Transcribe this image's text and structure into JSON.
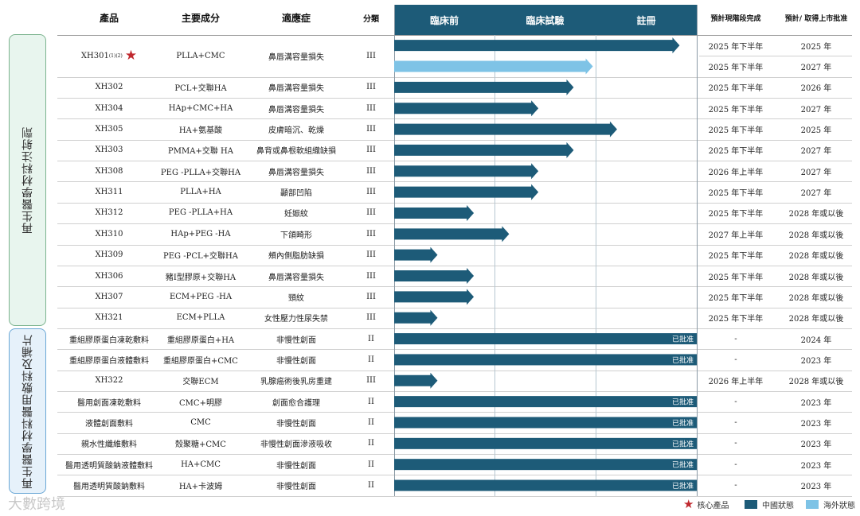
{
  "header": {
    "product": "產品",
    "ingredient": "主要成分",
    "indication": "適應症",
    "class": "分類",
    "phases": [
      "臨床前",
      "臨床試驗",
      "註冊"
    ],
    "expected_completion": "預計現階段完成",
    "expected_approval": "預計/ 取得上市批准"
  },
  "sidebar": {
    "group1": "再生醫學材料注射劑",
    "group2": "再生醫學材料醫用敷料及補片"
  },
  "colors": {
    "china": "#1d5b78",
    "overseas": "#7ec3e6",
    "star": "#c0282e",
    "group1_bg": "#e8f5ee",
    "group1_border": "#7bb38e",
    "group2_bg": "#e6f1fa",
    "group2_border": "#6aa7d6"
  },
  "chart_data": {
    "type": "bar",
    "x_axis": "stage progress (0 = start of 臨床前, 1 = start of 臨床試驗, 2 = start of 註冊, 3 = end of 註冊)",
    "approved_label": "已批准",
    "rows": [
      {
        "product": "XH301",
        "sup": "(1)(2)",
        "star": true,
        "ingredient": "PLLA+CMC",
        "indication": "鼻唇溝容量損失",
        "class": "III",
        "china": 2.83,
        "overseas": 1.97,
        "completion_china": "2025 年下半年",
        "approval_china": "2025 年",
        "completion_overseas": "2025 年下半年",
        "approval_overseas": "2027 年"
      },
      {
        "product": "XH302",
        "ingredient": "PCL+交聯HA",
        "indication": "鼻唇溝容量損失",
        "class": "III",
        "china": 1.78,
        "completion": "2025 年下半年",
        "approval": "2026 年"
      },
      {
        "product": "XH304",
        "ingredient": "HAp+CMC+HA",
        "indication": "鼻唇溝容量損失",
        "class": "III",
        "china": 1.43,
        "completion": "2025 年下半年",
        "approval": "2027 年"
      },
      {
        "product": "XH305",
        "ingredient": "HA+氨基酸",
        "indication": "皮膚暗沉、乾燥",
        "class": "III",
        "china": 2.21,
        "completion": "2025 年下半年",
        "approval": "2025 年"
      },
      {
        "product": "XH303",
        "ingredient": "PMMA+交聯 HA",
        "indication": "鼻背或鼻根軟組織缺損",
        "class": "III",
        "china": 1.78,
        "completion": "2025 年下半年",
        "approval": "2027 年"
      },
      {
        "product": "XH308",
        "ingredient": "PEG -PLLA+交聯HA",
        "indication": "鼻唇溝容量損失",
        "class": "III",
        "china": 1.43,
        "completion": "2026 年上半年",
        "approval": "2027 年"
      },
      {
        "product": "XH311",
        "ingredient": "PLLA+HA",
        "indication": "顳部凹陷",
        "class": "III",
        "china": 1.43,
        "completion": "2025 年下半年",
        "approval": "2027 年"
      },
      {
        "product": "XH312",
        "ingredient": "PEG -PLLA+HA",
        "indication": "妊娠紋",
        "class": "III",
        "china": 0.79,
        "completion": "2025 年下半年",
        "approval": "2028 年或以後"
      },
      {
        "product": "XH310",
        "ingredient": "HAp+PEG -HA",
        "indication": "下頜畸形",
        "class": "III",
        "china": 1.14,
        "completion": "2027 年上半年",
        "approval": "2028 年或以後"
      },
      {
        "product": "XH309",
        "ingredient": "PEG -PCL+交聯HA",
        "indication": "頰內側脂肪缺損",
        "class": "III",
        "china": 0.43,
        "completion": "2025 年下半年",
        "approval": "2028 年或以後"
      },
      {
        "product": "XH306",
        "ingredient": "豬I型膠原+交聯HA",
        "indication": "鼻唇溝容量損失",
        "class": "III",
        "china": 0.79,
        "completion": "2025 年下半年",
        "approval": "2028 年或以後"
      },
      {
        "product": "XH307",
        "ingredient": "ECM+PEG -HA",
        "indication": "頸紋",
        "class": "III",
        "china": 0.79,
        "completion": "2025 年下半年",
        "approval": "2028 年或以後"
      },
      {
        "product": "XH321",
        "ingredient": "ECM+PLLA",
        "indication": "女性壓力性尿失禁",
        "class": "III",
        "china": 0.43,
        "completion": "2025 年下半年",
        "approval": "2028 年或以後"
      },
      {
        "product": "重組膠原蛋白凍乾敷料",
        "ingredient": "重組膠原蛋白+HA",
        "indication": "非慢性創面",
        "class": "II",
        "china": 3,
        "approved": true,
        "completion": "-",
        "approval": "2024 年"
      },
      {
        "product": "重組膠原蛋白液體敷料",
        "ingredient": "重組膠原蛋白+CMC",
        "indication": "非慢性創面",
        "class": "II",
        "china": 3,
        "approved": true,
        "completion": "-",
        "approval": "2023 年"
      },
      {
        "product": "XH322",
        "ingredient": "交聯ECM",
        "indication": "乳腺癌術後乳房重建",
        "class": "III",
        "china": 0.43,
        "completion": "2026 年上半年",
        "approval": "2028 年或以後"
      },
      {
        "product": "醫用創面凍乾敷料",
        "ingredient": "CMC+明膠",
        "indication": "創面愈合護理",
        "class": "II",
        "china": 3,
        "approved": true,
        "completion": "-",
        "approval": "2023 年"
      },
      {
        "product": "液體創面敷料",
        "ingredient": "CMC",
        "indication": "非慢性創面",
        "class": "II",
        "china": 3,
        "approved": true,
        "completion": "-",
        "approval": "2023 年"
      },
      {
        "product": "親水性纖維敷料",
        "ingredient": "殼聚糖+CMC",
        "indication": "非慢性創面滲液吸收",
        "class": "II",
        "china": 3,
        "approved": true,
        "completion": "-",
        "approval": "2023 年"
      },
      {
        "product": "醫用透明質酸鈉液體敷料",
        "ingredient": "HA+CMC",
        "indication": "非慢性創面",
        "class": "II",
        "china": 3,
        "approved": true,
        "completion": "-",
        "approval": "2023 年"
      },
      {
        "product": "醫用透明質酸鈉敷料",
        "ingredient": "HA+卡波姆",
        "indication": "非慢性創面",
        "class": "II",
        "china": 3,
        "approved": true,
        "completion": "-",
        "approval": "2023 年"
      }
    ],
    "legend": [
      {
        "label": "核心產品",
        "kind": "star"
      },
      {
        "label": "中國狀態",
        "kind": "china"
      },
      {
        "label": "海外狀態",
        "kind": "overseas"
      }
    ]
  },
  "watermark": "大數跨境"
}
